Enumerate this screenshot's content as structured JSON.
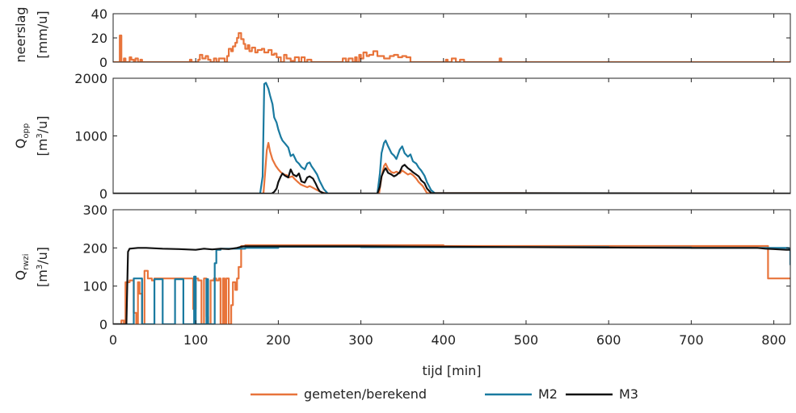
{
  "chart_data": {
    "type": "line",
    "xlabel": "tijd [min]",
    "xlim": [
      0,
      820
    ],
    "xticks": [
      0,
      100,
      200,
      300,
      400,
      500,
      600,
      700,
      800
    ],
    "legend": {
      "placement": "bottom",
      "entries": [
        {
          "name": "gemeten/berekend",
          "color": "#e8743b"
        },
        {
          "name": "M2",
          "color": "#1a7aa0"
        },
        {
          "name": "M3",
          "color": "#111111"
        }
      ]
    },
    "panels": [
      {
        "ylabel_line1": "neerslag",
        "ylabel_line2": "[mm/u]",
        "ylim": [
          0,
          40
        ],
        "yticks": [
          0,
          20,
          40
        ],
        "series": [
          {
            "name": "gemeten/berekend",
            "color": "#e8743b",
            "step": true,
            "x": [
              0,
              8,
              10,
              13,
              15,
              20,
              22,
              25,
              27,
              30,
              33,
              35,
              90,
              93,
              95,
              100,
              103,
              105,
              108,
              112,
              115,
              118,
              122,
              125,
              128,
              135,
              138,
              140,
              143,
              145,
              148,
              150,
              152,
              155,
              158,
              160,
              163,
              165,
              168,
              172,
              175,
              180,
              183,
              188,
              192,
              195,
              198,
              203,
              207,
              210,
              215,
              220,
              225,
              228,
              232,
              235,
              240,
              275,
              278,
              282,
              285,
              290,
              293,
              295,
              298,
              300,
              303,
              307,
              310,
              315,
              320,
              328,
              335,
              340,
              345,
              350,
              355,
              360,
              400,
              403,
              405,
              410,
              415,
              420,
              425,
              430,
              465,
              468,
              470,
              475,
              820
            ],
            "y": [
              0,
              22,
              0,
              3,
              0,
              4,
              2,
              0,
              3,
              0,
              2,
              0,
              0,
              2,
              0,
              0,
              2,
              6,
              3,
              5,
              2,
              0,
              3,
              0,
              3,
              0,
              5,
              11,
              9,
              13,
              16,
              20,
              24,
              19,
              15,
              11,
              14,
              9,
              12,
              8,
              10,
              11,
              8,
              10,
              6,
              7,
              4,
              0,
              6,
              3,
              1,
              4,
              0,
              4,
              0,
              2,
              0,
              0,
              3,
              0,
              3,
              0,
              4,
              0,
              6,
              3,
              8,
              5,
              6,
              9,
              5,
              3,
              5,
              6,
              4,
              5,
              4,
              0,
              0,
              2,
              0,
              3,
              0,
              2,
              0,
              0,
              0,
              3,
              0,
              0,
              0
            ]
          }
        ]
      },
      {
        "ylabel_main": "Q",
        "ylabel_sub": "opp",
        "ylabel_line2_pre": "[m",
        "ylabel_sup": "3",
        "ylabel_line2_post": "/u]",
        "ylim": [
          0,
          2000
        ],
        "yticks": [
          0,
          1000,
          2000
        ],
        "series": [
          {
            "name": "gemeten/berekend",
            "color": "#e8743b",
            "x": [
              0,
              182,
              184,
              186,
              188,
              190,
              193,
              197,
              200,
              203,
              207,
              210,
              213,
              217,
              220,
              223,
              227,
              230,
              235,
              238,
              242,
              247,
              250,
              253,
              257,
              260,
              322,
              325,
              328,
              330,
              333,
              337,
              340,
              343,
              347,
              350,
              353,
              357,
              360,
              363,
              367,
              370,
              375,
              380,
              820
            ],
            "y": [
              0,
              0,
              350,
              750,
              880,
              730,
              590,
              480,
              420,
              370,
              330,
              320,
              280,
              300,
              250,
              210,
              160,
              140,
              110,
              130,
              100,
              60,
              40,
              20,
              5,
              0,
              0,
              280,
              480,
              520,
              430,
              370,
              360,
              380,
              350,
              400,
              370,
              330,
              350,
              320,
              260,
              200,
              130,
              10,
              0
            ]
          },
          {
            "name": "M2",
            "color": "#1a7aa0",
            "x": [
              0,
              178,
              181,
              183,
              185,
              188,
              190,
              193,
              195,
              198,
              200,
              203,
              205,
              208,
              212,
              215,
              218,
              222,
              225,
              228,
              232,
              235,
              238,
              240,
              243,
              247,
              250,
              255,
              260,
              320,
              323,
              325,
              328,
              330,
              333,
              337,
              340,
              343,
              347,
              350,
              353,
              357,
              360,
              363,
              367,
              370,
              373,
              377,
              380,
              385,
              390,
              820
            ],
            "y": [
              0,
              0,
              300,
              1900,
              1920,
              1820,
              1700,
              1550,
              1320,
              1230,
              1110,
              980,
              920,
              870,
              800,
              650,
              680,
              560,
              520,
              460,
              420,
              520,
              540,
              480,
              420,
              330,
              220,
              80,
              0,
              0,
              350,
              700,
              880,
              920,
              820,
              700,
              660,
              600,
              760,
              820,
              700,
              640,
              680,
              560,
              520,
              450,
              400,
              310,
              200,
              60,
              0,
              0
            ]
          },
          {
            "name": "M3",
            "color": "#111111",
            "x": [
              0,
              192,
              195,
              198,
              200,
              203,
              205,
              208,
              212,
              215,
              218,
              222,
              225,
              228,
              232,
              235,
              238,
              242,
              245,
              248,
              250,
              255,
              260,
              320,
              323,
              325,
              328,
              330,
              333,
              337,
              340,
              343,
              347,
              350,
              353,
              357,
              360,
              363,
              367,
              370,
              373,
              377,
              380,
              385,
              820
            ],
            "y": [
              0,
              0,
              30,
              90,
              200,
              300,
              350,
              310,
              280,
              420,
              330,
              300,
              350,
              210,
              190,
              280,
              300,
              260,
              180,
              90,
              40,
              5,
              0,
              0,
              120,
              300,
              400,
              440,
              360,
              330,
              300,
              320,
              370,
              470,
              500,
              440,
              410,
              370,
              330,
              300,
              230,
              180,
              90,
              10,
              0
            ]
          }
        ]
      },
      {
        "ylabel_main": "Q",
        "ylabel_sub": "rwzi",
        "ylabel_line2_pre": "[m",
        "ylabel_sup": "3",
        "ylabel_line2_post": "/u]",
        "ylim": [
          0,
          300
        ],
        "yticks": [
          0,
          100,
          200,
          300
        ],
        "series": [
          {
            "name": "gemeten/berekend",
            "color": "#e8743b",
            "step": true,
            "x": [
              0,
              10,
              13,
              15,
              20,
              25,
              28,
              30,
              32,
              35,
              38,
              42,
              47,
              50,
              55,
              60,
              70,
              80,
              90,
              95,
              97,
              100,
              103,
              107,
              110,
              113,
              115,
              118,
              122,
              125,
              128,
              130,
              133,
              135,
              137,
              140,
              143,
              145,
              148,
              150,
              152,
              155,
              160,
              300,
              400,
              500,
              600,
              700,
              740,
              790,
              793,
              800,
              820
            ],
            "y": [
              0,
              10,
              0,
              110,
              115,
              30,
              0,
              110,
              80,
              0,
              140,
              120,
              115,
              120,
              120,
              120,
              120,
              120,
              120,
              120,
              40,
              120,
              115,
              0,
              120,
              20,
              0,
              115,
              120,
              115,
              120,
              0,
              120,
              0,
              120,
              0,
              50,
              110,
              90,
              120,
              150,
              205,
              207,
              207,
              205,
              205,
              205,
              205,
              205,
              205,
              120,
              120,
              120
            ]
          },
          {
            "name": "M2",
            "color": "#1a7aa0",
            "step": true,
            "x": [
              0,
              20,
              25,
              30,
              35,
              40,
              45,
              50,
              55,
              60,
              65,
              70,
              75,
              80,
              85,
              90,
              95,
              98,
              100,
              103,
              105,
              110,
              113,
              115,
              118,
              120,
              123,
              125,
              130,
              160,
              200,
              300,
              400,
              500,
              600,
              700,
              800,
              818,
              820
            ],
            "y": [
              0,
              0,
              120,
              120,
              0,
              0,
              0,
              118,
              118,
              0,
              0,
              0,
              118,
              118,
              0,
              0,
              0,
              125,
              0,
              0,
              0,
              0,
              118,
              0,
              0,
              0,
              160,
              195,
              198,
              200,
              203,
              202,
              202,
              202,
              201,
              200,
              200,
              198,
              155
            ]
          },
          {
            "name": "M3",
            "color": "#111111",
            "x": [
              0,
              16,
              18,
              20,
              30,
              40,
              60,
              80,
              100,
              110,
              120,
              130,
              140,
              150,
              155,
              160,
              200,
              300,
              400,
              500,
              600,
              700,
              780,
              790,
              800,
              815,
              820
            ],
            "y": [
              0,
              0,
              190,
              198,
              200,
              200,
              198,
              197,
              195,
              198,
              196,
              198,
              197,
              200,
              203,
              204,
              204,
              204,
              203,
              202,
              201,
              200,
              200,
              198,
              197,
              195,
              195
            ]
          }
        ]
      }
    ]
  }
}
